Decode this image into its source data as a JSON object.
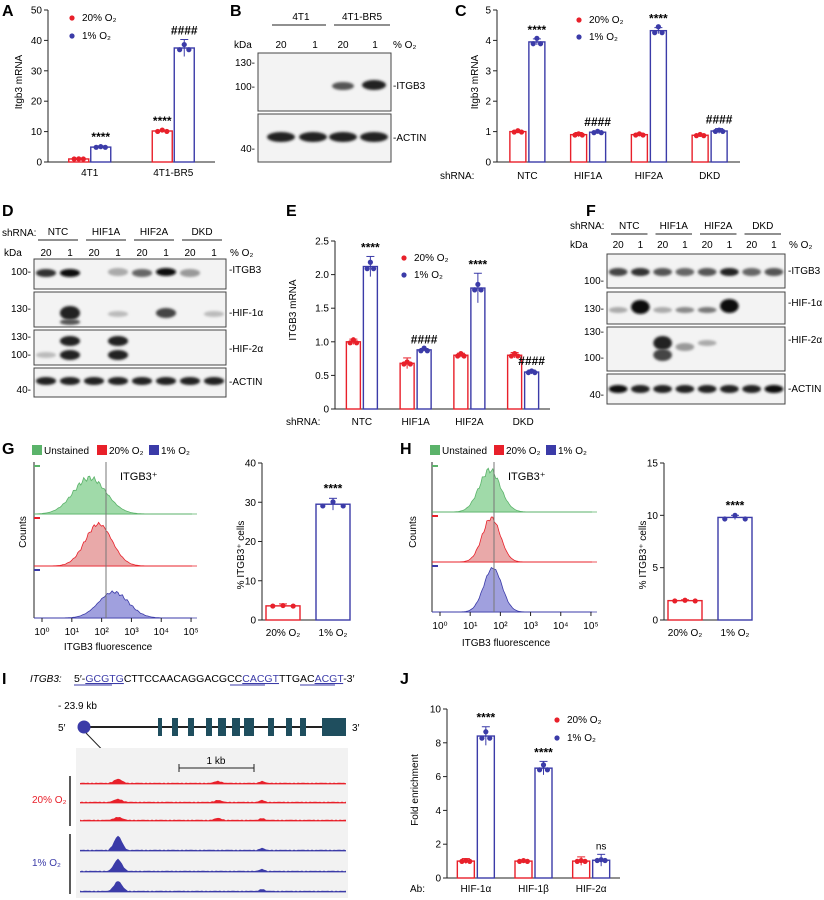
{
  "colors": {
    "red": "#e8202a",
    "blue": "#3b3ba8",
    "green": "#5bb36a",
    "seq": "#3b3ba8"
  },
  "legend_20": "20% O₂",
  "legend_1": "1% O₂",
  "legend_unstained": "Unstained",
  "panels": {
    "A": {
      "letter": "A",
      "ylabel": "Itgb3 mRNA",
      "ylim": [
        0,
        50
      ],
      "yticks": [
        "0",
        "10",
        "20",
        "30",
        "40",
        "50"
      ],
      "groups": [
        "4T1",
        "4T1-BR5"
      ],
      "sig20": [
        "",
        "****"
      ],
      "sig1": [
        "****",
        "####"
      ]
    },
    "B": {
      "letter": "B",
      "lines": [
        "4T1",
        "4T1-BR5"
      ],
      "lanes": [
        "20",
        "1",
        "20",
        "1"
      ],
      "unit": "% O₂",
      "kda": "kDa",
      "markers_top": [
        "130-",
        "100-"
      ],
      "marker_bottom": "40-",
      "labels": [
        "-ITGB3",
        "-ACTIN"
      ]
    },
    "C": {
      "letter": "C",
      "ylabel": "Itgb3 mRNA",
      "ylim": [
        0,
        5
      ],
      "yticks": [
        "0",
        "1",
        "2",
        "3",
        "4",
        "5"
      ],
      "shrna_label": "shRNA:",
      "groups": [
        "NTC",
        "HIF1A",
        "HIF2A",
        "DKD"
      ],
      "sig1": [
        "****",
        "####",
        "****",
        "####"
      ]
    },
    "D": {
      "letter": "D",
      "shrna_label": "shRNA:",
      "groups": [
        "NTC",
        "HIF1A",
        "HIF2A",
        "DKD"
      ],
      "lanes": [
        "20",
        "1",
        "20",
        "1",
        "20",
        "1",
        "20",
        "1"
      ],
      "unit": "% O₂",
      "kda": "kDa",
      "blots": [
        {
          "label": "-ITGB3",
          "markers": [
            "100-"
          ]
        },
        {
          "label": "-HIF-1α",
          "markers": [
            "130-",
            "100-"
          ]
        },
        {
          "label": "-HIF-2α",
          "markers": [
            "130-",
            "100-"
          ]
        },
        {
          "label": "-ACTIN",
          "markers": [
            "40-"
          ]
        }
      ]
    },
    "E": {
      "letter": "E",
      "ylabel": "ITGB3 mRNA",
      "ylim": [
        0,
        2.5
      ],
      "yticks": [
        "0",
        "0.5",
        "1.0",
        "1.5",
        "2.0",
        "2.5"
      ],
      "shrna_label": "shRNA:",
      "groups": [
        "NTC",
        "HIF1A",
        "HIF2A",
        "DKD"
      ],
      "sig1": [
        "****",
        "####",
        "****",
        "####"
      ]
    },
    "F": {
      "letter": "F",
      "shrna_label": "shRNA:",
      "groups": [
        "NTC",
        "HIF1A",
        "HIF2A",
        "DKD"
      ],
      "lanes": [
        "20",
        "1",
        "20",
        "1",
        "20",
        "1",
        "20",
        "1"
      ],
      "unit": "% O₂",
      "kda": "kDa",
      "blots": [
        {
          "label": "-ITGB3",
          "markers": [
            "100-"
          ]
        },
        {
          "label": "-HIF-1α",
          "markers": [
            "130-",
            "100-"
          ]
        },
        {
          "label": "-HIF-2α",
          "markers": [
            "130-",
            "100-"
          ]
        },
        {
          "label": "-ACTIN",
          "markers": [
            "40-"
          ]
        }
      ]
    },
    "G": {
      "letter": "G",
      "gate_label": "ITGB3⁺",
      "ylabel": "Counts",
      "xlabel": "ITGB3 fluorescence",
      "xticks": [
        "10⁰",
        "10¹",
        "10²",
        "10³",
        "10⁴",
        "10⁵"
      ],
      "bar_ylabel": "% ITGB3⁺ cells",
      "bar_ylim": [
        0,
        40
      ],
      "bar_yticks": [
        "0",
        "10",
        "20",
        "30",
        "40"
      ],
      "bar_groups": [
        "20% O₂",
        "1% O₂"
      ],
      "sig": "****"
    },
    "H": {
      "letter": "H",
      "gate_label": "ITGB3⁺",
      "ylabel": "Counts",
      "xlabel": "ITGB3 fluorescence",
      "xticks": [
        "10⁰",
        "10¹",
        "10²",
        "10³",
        "10⁴",
        "10⁵"
      ],
      "bar_ylabel": "% ITGB3⁺ cells",
      "bar_ylim": [
        0,
        15
      ],
      "bar_yticks": [
        "0",
        "5",
        "10",
        "15"
      ],
      "bar_groups": [
        "20% O₂",
        "1% O₂"
      ],
      "sig": "****"
    },
    "I": {
      "letter": "I",
      "gene": "ITGB3:",
      "seq": [
        "5′-",
        "GCGTG",
        "CTTCCAACAGGACGCC",
        "CACGT",
        "TTGAC",
        "ACGT",
        "-3′"
      ],
      "kb_label": "- 23.9 kb",
      "five": "5′",
      "three": "3′",
      "scale": "1 kb",
      "track_labels": [
        "20% O₂",
        "1% O₂"
      ]
    },
    "J": {
      "letter": "J",
      "ylabel": "Fold enrichment",
      "ylim": [
        0,
        10
      ],
      "yticks": [
        "0",
        "2",
        "4",
        "6",
        "8",
        "10"
      ],
      "ab_label": "Ab:",
      "groups": [
        "HIF-1α",
        "HIF-1β",
        "HIF-2α"
      ],
      "sig1": [
        "****",
        "****",
        "ns"
      ]
    }
  },
  "chart_data": [
    {
      "panel": "A",
      "type": "bar",
      "ylabel": "Itgb3 mRNA",
      "ylim": [
        0,
        50
      ],
      "categories": [
        "4T1",
        "4T1-BR5"
      ],
      "series": [
        {
          "name": "20% O₂",
          "values": [
            1.0,
            10.2
          ]
        },
        {
          "name": "1% O₂",
          "values": [
            4.9,
            37.5
          ]
        }
      ],
      "errors": [
        [
          0.1,
          0.3
        ],
        [
          0.4,
          2.8
        ]
      ]
    },
    {
      "panel": "C",
      "type": "bar",
      "ylabel": "Itgb3 mRNA",
      "ylim": [
        0,
        5
      ],
      "categories": [
        "NTC",
        "HIF1A",
        "HIF2A",
        "DKD"
      ],
      "series": [
        {
          "name": "20% O₂",
          "values": [
            1.0,
            0.9,
            0.9,
            0.88
          ]
        },
        {
          "name": "1% O₂",
          "values": [
            3.95,
            0.98,
            4.32,
            1.02
          ]
        }
      ],
      "errors": [
        [
          0.04,
          0.07,
          0.05,
          0.03
        ],
        [
          0.1,
          0.04,
          0.1,
          0.08
        ]
      ]
    },
    {
      "panel": "E",
      "type": "bar",
      "ylabel": "ITGB3 mRNA",
      "ylim": [
        0,
        2.5
      ],
      "categories": [
        "NTC",
        "HIF1A",
        "HIF2A",
        "DKD"
      ],
      "series": [
        {
          "name": "20% O₂",
          "values": [
            1.0,
            0.68,
            0.8,
            0.8
          ]
        },
        {
          "name": "1% O₂",
          "values": [
            2.12,
            0.88,
            1.8,
            0.55
          ]
        }
      ],
      "errors": [
        [
          0.04,
          0.08,
          0.03,
          0.04
        ],
        [
          0.15,
          0.02,
          0.22,
          0.03
        ]
      ]
    },
    {
      "panel": "G",
      "type": "bar",
      "ylabel": "% ITGB3⁺ cells",
      "ylim": [
        0,
        40
      ],
      "categories": [
        "20% O₂",
        "1% O₂"
      ],
      "values": [
        3.6,
        29.5
      ],
      "errors": [
        0.5,
        1.5
      ]
    },
    {
      "panel": "H",
      "type": "bar",
      "ylabel": "% ITGB3⁺ cells",
      "ylim": [
        0,
        15
      ],
      "categories": [
        "20% O₂",
        "1% O₂"
      ],
      "values": [
        1.85,
        9.8
      ],
      "errors": [
        0.08,
        0.2
      ]
    },
    {
      "panel": "J",
      "type": "bar",
      "ylabel": "Fold enrichment",
      "ylim": [
        0,
        10
      ],
      "categories": [
        "HIF-1α",
        "HIF-1β",
        "HIF-2α"
      ],
      "series": [
        {
          "name": "20% O₂",
          "values": [
            1.0,
            1.0,
            1.0
          ]
        },
        {
          "name": "1% O₂",
          "values": [
            8.4,
            6.5,
            1.05
          ]
        }
      ],
      "errors": [
        [
          0.15,
          0.05,
          0.25
        ],
        [
          0.55,
          0.4,
          0.35
        ]
      ]
    }
  ]
}
